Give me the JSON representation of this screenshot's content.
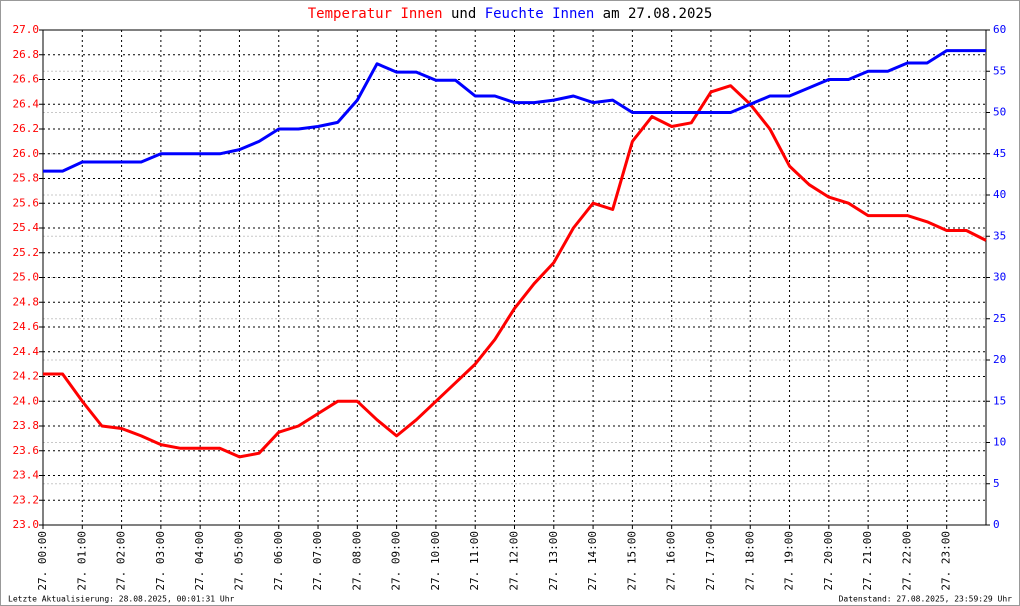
{
  "chart_data": {
    "type": "line",
    "title_joiner": "und",
    "title_suffix": "am 27.08.2025",
    "update_note": "Letzte Aktualisierung: 28.08.2025, 00:01:31 Uhr",
    "data_note": "Datenstand: 27.08.2025, 23:59:29 Uhr",
    "grid": true,
    "x": [
      0,
      0.5,
      1,
      1.5,
      2,
      2.5,
      3,
      3.5,
      4,
      4.5,
      5,
      5.5,
      6,
      6.5,
      7,
      7.5,
      8,
      8.5,
      9,
      9.5,
      10,
      10.5,
      11,
      11.5,
      12,
      12.5,
      13,
      13.5,
      14,
      14.5,
      15,
      15.5,
      16,
      16.5,
      17,
      17.5,
      18,
      18.5,
      19,
      19.5,
      20,
      20.5,
      21,
      21.5,
      22,
      22.5,
      23,
      23.5,
      24
    ],
    "xlim": [
      0,
      24
    ],
    "xticks": [
      {
        "value": 0,
        "label": "27. 00:00"
      },
      {
        "value": 1,
        "label": "27. 01:00"
      },
      {
        "value": 2,
        "label": "27. 02:00"
      },
      {
        "value": 3,
        "label": "27. 03:00"
      },
      {
        "value": 4,
        "label": "27. 04:00"
      },
      {
        "value": 5,
        "label": "27. 05:00"
      },
      {
        "value": 6,
        "label": "27. 06:00"
      },
      {
        "value": 7,
        "label": "27. 07:00"
      },
      {
        "value": 8,
        "label": "27. 08:00"
      },
      {
        "value": 9,
        "label": "27. 09:00"
      },
      {
        "value": 10,
        "label": "27. 10:00"
      },
      {
        "value": 11,
        "label": "27. 11:00"
      },
      {
        "value": 12,
        "label": "27. 12:00"
      },
      {
        "value": 13,
        "label": "27. 13:00"
      },
      {
        "value": 14,
        "label": "27. 14:00"
      },
      {
        "value": 15,
        "label": "27. 15:00"
      },
      {
        "value": 16,
        "label": "27. 16:00"
      },
      {
        "value": 17,
        "label": "27. 17:00"
      },
      {
        "value": 18,
        "label": "27. 18:00"
      },
      {
        "value": 19,
        "label": "27. 19:00"
      },
      {
        "value": 20,
        "label": "27. 20:00"
      },
      {
        "value": 21,
        "label": "27. 21:00"
      },
      {
        "value": 22,
        "label": "27. 22:00"
      },
      {
        "value": 23,
        "label": "27. 23:00"
      }
    ],
    "ylim": [
      23,
      27
    ],
    "yticks": [
      {
        "value": 23,
        "label": "23.0"
      },
      23.2,
      23.4,
      23.6,
      23.8,
      {
        "value": 24,
        "label": "24.0"
      },
      24.2,
      24.4,
      24.6,
      24.8,
      {
        "value": 25,
        "label": "25.0"
      },
      25.2,
      25.4,
      25.6,
      25.8,
      {
        "value": 26,
        "label": "26.0"
      },
      26.2,
      26.4,
      26.6,
      26.8,
      {
        "value": 27,
        "label": "27.0"
      }
    ],
    "y2lim": [
      0,
      60
    ],
    "y2ticks": [
      0,
      5,
      10,
      15,
      20,
      25,
      30,
      35,
      40,
      45,
      50,
      55,
      60
    ],
    "series": [
      {
        "name": "Temperatur Innen",
        "color": "#ff0000",
        "values": [
          24.22,
          24.22,
          24.0,
          23.8,
          23.78,
          23.72,
          23.65,
          23.62,
          23.62,
          23.62,
          23.55,
          23.58,
          23.75,
          23.8,
          23.9,
          24.0,
          24.0,
          23.85,
          23.72,
          23.85,
          24.0,
          24.15,
          24.3,
          24.5,
          24.75,
          24.95,
          25.12,
          25.4,
          25.6,
          25.55,
          26.1,
          26.3,
          26.22,
          26.25,
          26.5,
          26.55,
          26.4,
          26.2,
          25.9,
          25.75,
          25.65,
          25.6,
          25.5,
          25.5,
          25.5,
          25.45,
          25.38,
          25.38,
          25.3
        ]
      },
      {
        "name": "Feuchte Innen",
        "color": "#0000ff",
        "axis": "y2",
        "values": [
          42.9,
          42.9,
          44,
          44,
          44,
          44,
          45,
          45,
          45,
          45,
          45.5,
          46.5,
          48,
          48,
          48.3,
          48.8,
          51.5,
          55.9,
          54.9,
          54.9,
          53.9,
          53.9,
          52,
          52,
          51.2,
          51.2,
          51.5,
          52,
          51.2,
          51.5,
          50,
          50,
          50,
          50,
          50,
          50,
          51,
          52,
          52,
          53,
          54,
          54,
          55,
          55,
          56,
          56,
          57.5,
          57.5,
          57.5
        ]
      }
    ]
  }
}
